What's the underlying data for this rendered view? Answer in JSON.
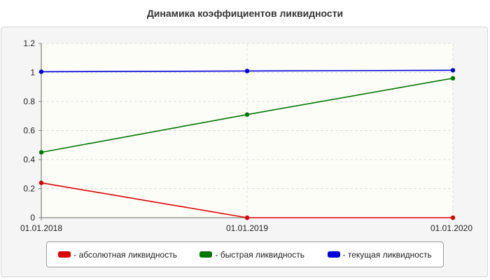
{
  "chart_data": {
    "type": "line",
    "title": "Динамика коэффициентов ликвидности",
    "categories": [
      "01.01.2018",
      "01.01.2019",
      "01.01.2020"
    ],
    "ylim": [
      0,
      1.2
    ],
    "yticks": [
      "0",
      "0.2",
      "0.4",
      "0.6",
      "0.8",
      "1",
      "1.2"
    ],
    "grid": true,
    "legend_position": "bottom",
    "series": [
      {
        "name": "- абсолютная ликвидность",
        "color": "#dd0000",
        "values": [
          0.24,
          0.0,
          0.0
        ]
      },
      {
        "name": "- быстрая ликвидность",
        "color": "#007700",
        "values": [
          0.45,
          0.71,
          0.96
        ]
      },
      {
        "name": "- текущая ликвидность",
        "color": "#0000dd",
        "values": [
          1.005,
          1.01,
          1.015
        ]
      }
    ]
  }
}
